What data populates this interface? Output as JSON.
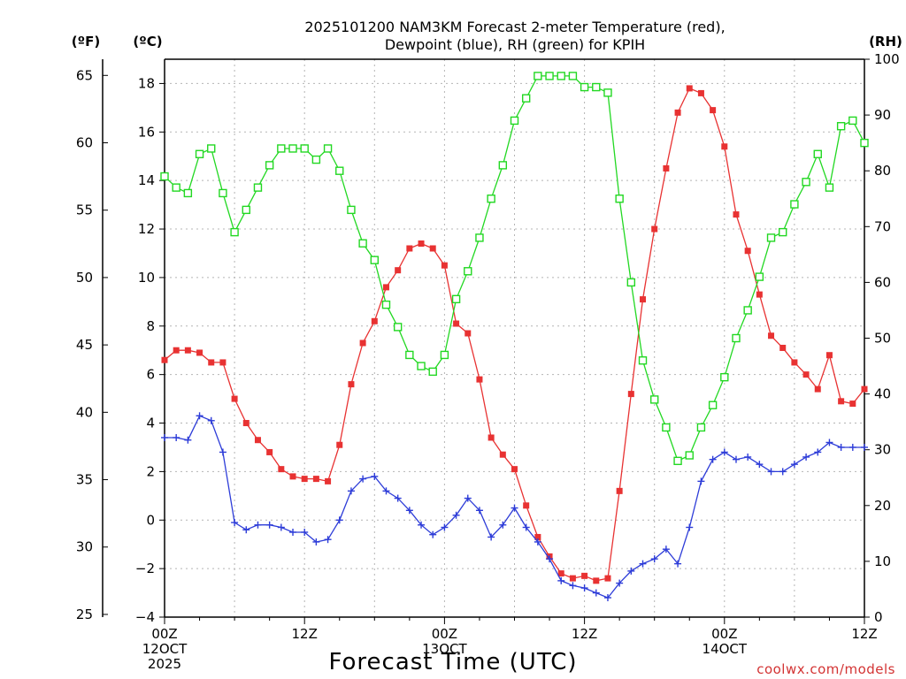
{
  "chart_data": {
    "type": "line",
    "title": [
      "2025101200 NAM3KM Forecast 2-meter Temperature (red),",
      "Dewpoint (blue), RH (green) for KPIH"
    ],
    "xlabel": "Forecast Time (UTC)",
    "credit": "coolwx.com/models",
    "y_left_celsius": {
      "unit_label": "(ºC)",
      "range": [
        -4,
        19
      ],
      "ticks": [
        -4,
        -2,
        0,
        2,
        4,
        6,
        8,
        10,
        12,
        14,
        16,
        18
      ]
    },
    "y_left_fahrenheit": {
      "unit_label": "(ºF)",
      "ticks": [
        25,
        30,
        35,
        40,
        45,
        50,
        55,
        60,
        65
      ]
    },
    "y_right_rh": {
      "unit_label": "(RH)",
      "range": [
        0,
        100
      ],
      "ticks": [
        0,
        10,
        20,
        30,
        40,
        50,
        60,
        70,
        80,
        90,
        100
      ]
    },
    "x_range_hours": [
      0,
      60
    ],
    "x_ticks": [
      {
        "hour": 0,
        "lines": [
          "00Z",
          "12OCT",
          "2025"
        ]
      },
      {
        "hour": 12,
        "lines": [
          "12Z"
        ]
      },
      {
        "hour": 24,
        "lines": [
          "00Z",
          "13OCT"
        ]
      },
      {
        "hour": 36,
        "lines": [
          "12Z"
        ]
      },
      {
        "hour": 48,
        "lines": [
          "00Z",
          "14OCT"
        ]
      },
      {
        "hour": 60,
        "lines": [
          "12Z"
        ]
      }
    ],
    "grid": true,
    "x": [
      0,
      1,
      2,
      3,
      4,
      5,
      6,
      7,
      8,
      9,
      10,
      11,
      12,
      13,
      14,
      15,
      16,
      17,
      18,
      19,
      20,
      21,
      22,
      23,
      24,
      25,
      26,
      27,
      28,
      29,
      30,
      31,
      32,
      33,
      34,
      35,
      36,
      37,
      38,
      39,
      40,
      41,
      42,
      43,
      44,
      45,
      46,
      47,
      48,
      49,
      50,
      51,
      52,
      53,
      54,
      55,
      56,
      57,
      58,
      59,
      60
    ],
    "series": [
      {
        "name": "2-meter Temperature",
        "axis": "celsius",
        "color": "#e83232",
        "marker": "filled-square",
        "values": [
          6.6,
          7.0,
          7.0,
          6.9,
          6.5,
          6.5,
          5.0,
          4.0,
          3.3,
          2.8,
          2.1,
          1.8,
          1.7,
          1.7,
          1.6,
          3.1,
          5.6,
          7.3,
          8.2,
          9.6,
          10.3,
          11.2,
          11.4,
          11.2,
          10.5,
          8.1,
          7.7,
          5.8,
          3.4,
          2.7,
          2.1,
          0.6,
          -0.7,
          -1.5,
          -2.2,
          -2.4,
          -2.3,
          -2.5,
          -2.4,
          1.2,
          5.2,
          9.1,
          12.0,
          14.5,
          16.8,
          17.8,
          17.6,
          16.9,
          15.4,
          12.6,
          11.1,
          9.3,
          7.6,
          7.1,
          6.5,
          6.0,
          5.4,
          6.8,
          4.9,
          4.8,
          5.4
        ]
      },
      {
        "name": "Dewpoint",
        "axis": "celsius",
        "color": "#2d3cd8",
        "marker": "plus",
        "values": [
          3.4,
          3.4,
          3.3,
          4.3,
          4.1,
          2.8,
          -0.1,
          -0.4,
          -0.2,
          -0.2,
          -0.3,
          -0.5,
          -0.5,
          -0.9,
          -0.8,
          0.0,
          1.2,
          1.7,
          1.8,
          1.2,
          0.9,
          0.4,
          -0.2,
          -0.6,
          -0.3,
          0.2,
          0.9,
          0.4,
          -0.7,
          -0.2,
          0.5,
          -0.3,
          -0.9,
          -1.6,
          -2.5,
          -2.7,
          -2.8,
          -3.0,
          -3.2,
          -2.6,
          -2.1,
          -1.8,
          -1.6,
          -1.2,
          -1.8,
          -0.3,
          1.6,
          2.5,
          2.8,
          2.5,
          2.6,
          2.3,
          2.0,
          2.0,
          2.3,
          2.6,
          2.8,
          3.2,
          3.0,
          3.0,
          3.0
        ]
      },
      {
        "name": "RH",
        "axis": "rh",
        "color": "#22d822",
        "marker": "open-square",
        "values": [
          79,
          77,
          76,
          83,
          84,
          76,
          69,
          73,
          77,
          81,
          84,
          84,
          84,
          82,
          84,
          80,
          73,
          67,
          64,
          56,
          52,
          47,
          45,
          44,
          47,
          57,
          62,
          68,
          75,
          81,
          89,
          93,
          97,
          97,
          97,
          97,
          95,
          95,
          94,
          75,
          60,
          46,
          39,
          34,
          28,
          29,
          34,
          38,
          43,
          50,
          55,
          61,
          68,
          69,
          74,
          78,
          83,
          77,
          88,
          89,
          85
        ]
      }
    ]
  }
}
